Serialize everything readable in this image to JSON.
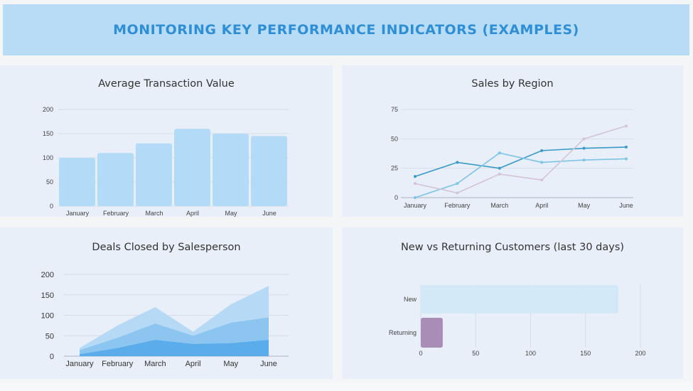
{
  "header": {
    "title": "MONITORING KEY PERFORMANCE INDICATORS (EXAMPLES)"
  },
  "colors": {
    "header_bg": "#b9dcf6",
    "title": "#2e8fd6",
    "panel_bg": "#e8eff8",
    "bar_fill": "#b3dbf7"
  },
  "chart_data": [
    {
      "id": "avg-transaction",
      "type": "bar",
      "title": "Average Transaction Value",
      "categories": [
        "January",
        "February",
        "March",
        "April",
        "May",
        "June"
      ],
      "values": [
        100,
        110,
        130,
        160,
        150,
        145
      ],
      "ylim": [
        0,
        200
      ],
      "yticks": [
        0,
        50,
        100,
        150,
        200
      ],
      "grid": true,
      "color": "#b3dbf7"
    },
    {
      "id": "sales-by-region",
      "type": "line",
      "title": "Sales by Region",
      "categories": [
        "January",
        "February",
        "March",
        "April",
        "May",
        "June"
      ],
      "ylim": [
        0,
        75
      ],
      "yticks": [
        0,
        25,
        50,
        75
      ],
      "grid": true,
      "series": [
        {
          "values": [
            18,
            30,
            25,
            40,
            42,
            43
          ],
          "color": "#3a9bc8"
        },
        {
          "values": [
            0,
            12,
            38,
            30,
            32,
            33
          ],
          "color": "#7cc3e6"
        },
        {
          "values": [
            12,
            4,
            20,
            15,
            50,
            61
          ],
          "color": "#d2c4d8"
        }
      ]
    },
    {
      "id": "deals-closed",
      "type": "area",
      "title": "Deals Closed by Salesperson",
      "categories": [
        "January",
        "February",
        "March",
        "April",
        "May",
        "June"
      ],
      "ylim": [
        0,
        200
      ],
      "yticks": [
        0,
        50,
        100,
        150,
        200
      ],
      "grid": true,
      "stacked": true,
      "series": [
        {
          "values": [
            5,
            20,
            40,
            30,
            32,
            40
          ],
          "color": "#5aacea"
        },
        {
          "values": [
            10,
            25,
            40,
            20,
            50,
            55
          ],
          "color": "#8cc6f0"
        },
        {
          "values": [
            5,
            30,
            40,
            10,
            45,
            77
          ],
          "color": "#b6daf6"
        }
      ]
    },
    {
      "id": "new-vs-returning",
      "type": "bar",
      "orientation": "horizontal",
      "title": "New vs Returning Customers (last 30 days)",
      "categories": [
        "New",
        "Returning"
      ],
      "values": [
        180,
        20
      ],
      "colors": [
        "#d4e9f8",
        "#a98db6"
      ],
      "xlim": [
        0,
        200
      ],
      "xticks": [
        0,
        50,
        100,
        150,
        200
      ],
      "grid": true
    }
  ]
}
